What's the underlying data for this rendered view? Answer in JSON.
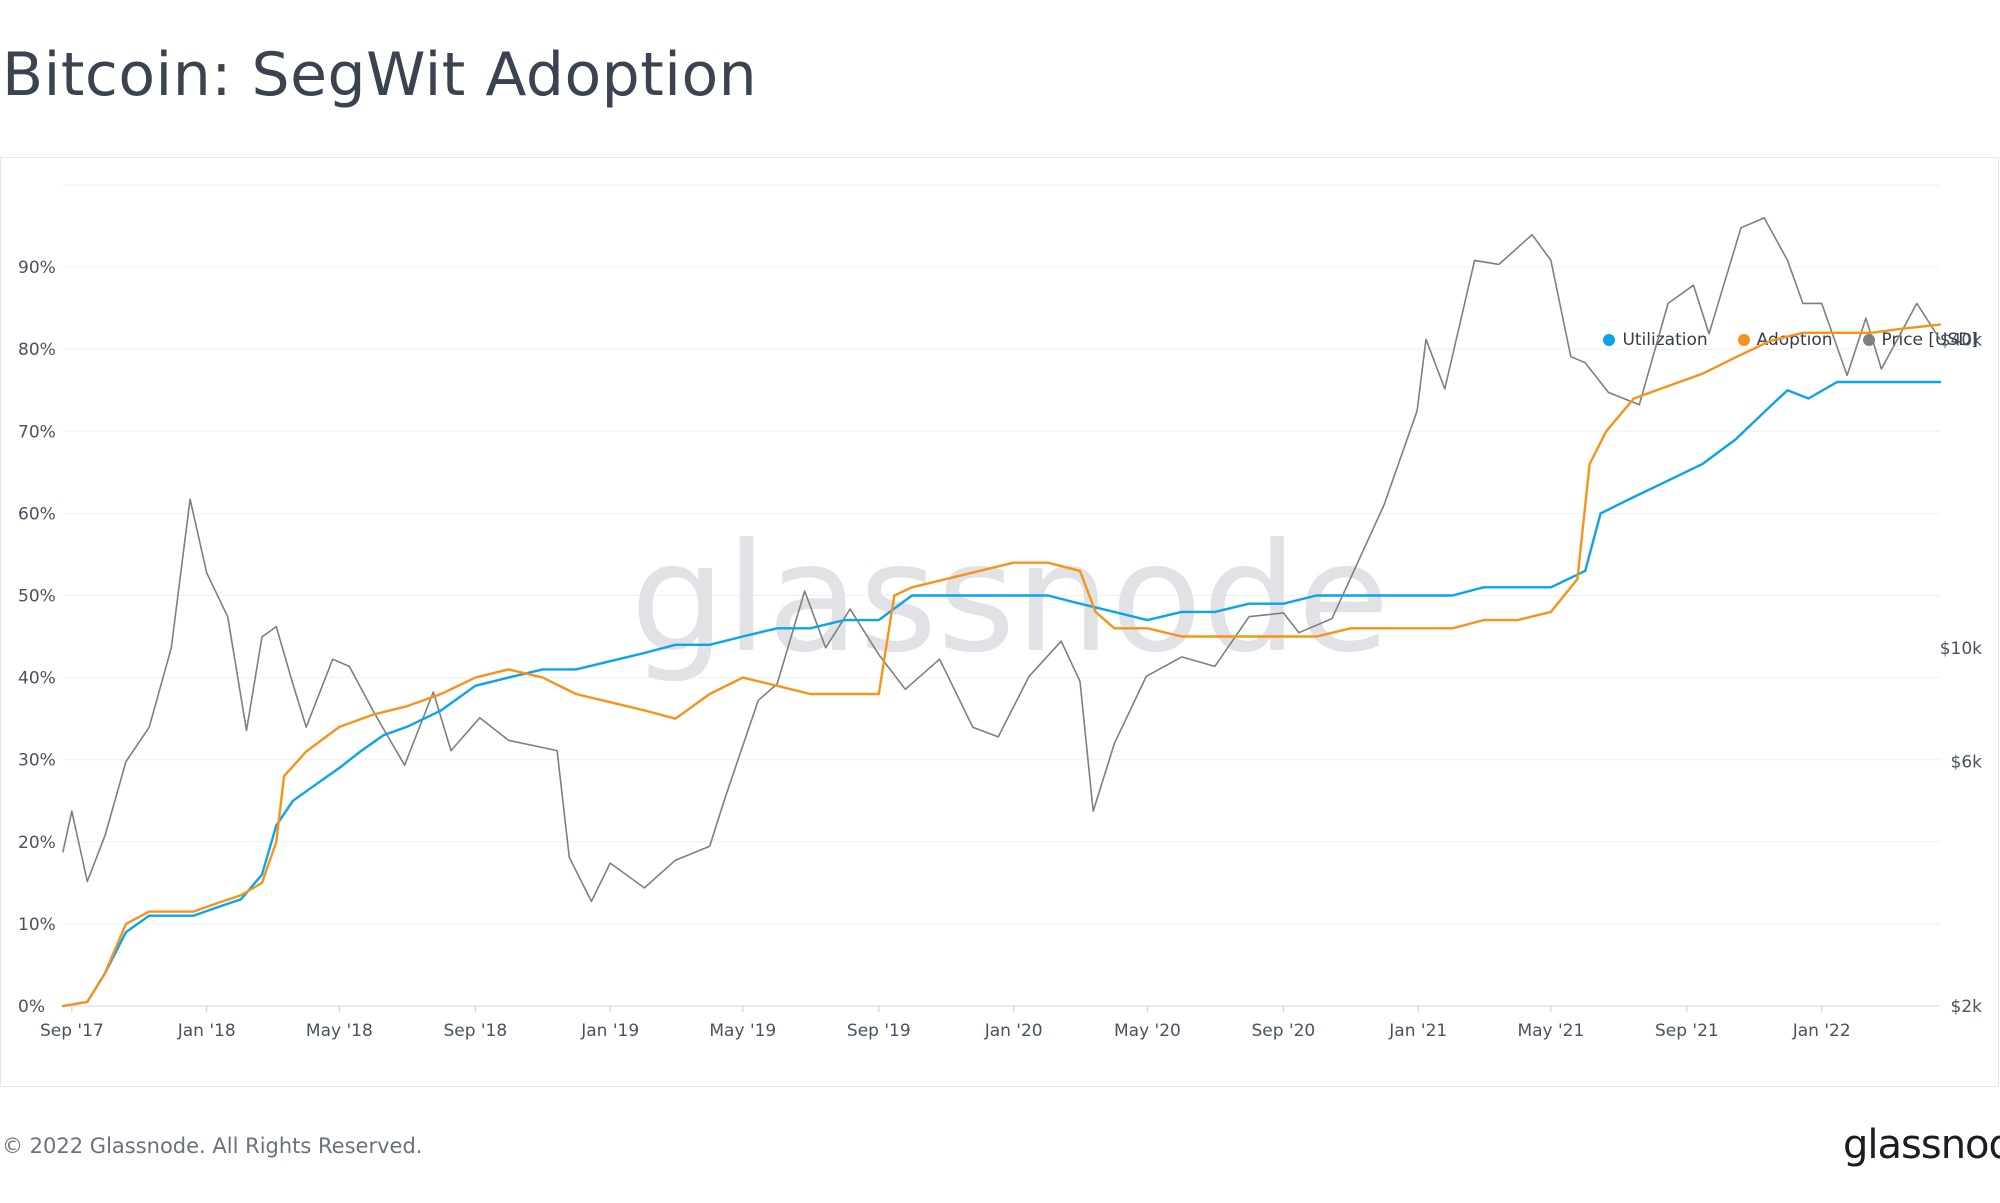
{
  "page": {
    "title": "Bitcoin: SegWit Adoption",
    "copyright": "© 2022 Glassnode. All Rights Reserved.",
    "logo_text": "glassnode",
    "watermark": "glassnode"
  },
  "chart_data": {
    "type": "line",
    "title": "Bitcoin: SegWit Adoption",
    "xlabel": "",
    "ylabel": "",
    "x_ticks": [
      "Sep '17",
      "Jan '18",
      "May '18",
      "Sep '18",
      "Jan '19",
      "May '19",
      "Sep '19",
      "Jan '20",
      "May '20",
      "Sep '20",
      "Jan '21",
      "May '21",
      "Sep '21",
      "Jan '22"
    ],
    "y_ticks_left": [
      "0%",
      "10%",
      "20%",
      "30%",
      "40%",
      "50%",
      "60%",
      "70%",
      "80%",
      "90%"
    ],
    "y_ticks_right": [
      "$2k",
      "$6k",
      "$10k",
      "$40k"
    ],
    "ylim_left": [
      0,
      100
    ],
    "ylim_right_log_usd": [
      2000,
      80000
    ],
    "x_range": [
      "2017-08-24",
      "2022-04-18"
    ],
    "grid": true,
    "legend_position": "top-right",
    "colors": {
      "utilization": "#0ba4ec",
      "adoption": "#f7931a",
      "price": "#7f7f7f"
    },
    "series": [
      {
        "name": "Utilization",
        "axis": "left",
        "points": [
          [
            "2017-08-24",
            0
          ],
          [
            "2017-09-15",
            0.5
          ],
          [
            "2017-10-01",
            4
          ],
          [
            "2017-10-20",
            9
          ],
          [
            "2017-11-10",
            11
          ],
          [
            "2017-12-01",
            11
          ],
          [
            "2017-12-20",
            11
          ],
          [
            "2018-01-10",
            12
          ],
          [
            "2018-02-01",
            13
          ],
          [
            "2018-02-20",
            16
          ],
          [
            "2018-03-05",
            22
          ],
          [
            "2018-03-20",
            25
          ],
          [
            "2018-04-10",
            27
          ],
          [
            "2018-05-01",
            29
          ],
          [
            "2018-05-20",
            31
          ],
          [
            "2018-06-10",
            33
          ],
          [
            "2018-07-01",
            34
          ],
          [
            "2018-08-01",
            36
          ],
          [
            "2018-09-01",
            39
          ],
          [
            "2018-10-01",
            40
          ],
          [
            "2018-11-01",
            41
          ],
          [
            "2018-12-01",
            41
          ],
          [
            "2019-01-01",
            42
          ],
          [
            "2019-02-01",
            43
          ],
          [
            "2019-03-01",
            44
          ],
          [
            "2019-04-01",
            44
          ],
          [
            "2019-05-01",
            45
          ],
          [
            "2019-06-01",
            46
          ],
          [
            "2019-07-01",
            46
          ],
          [
            "2019-08-01",
            47
          ],
          [
            "2019-09-01",
            47
          ],
          [
            "2019-10-01",
            50
          ],
          [
            "2019-11-01",
            50
          ],
          [
            "2019-12-01",
            50
          ],
          [
            "2020-01-01",
            50
          ],
          [
            "2020-02-01",
            50
          ],
          [
            "2020-03-01",
            49
          ],
          [
            "2020-04-01",
            48
          ],
          [
            "2020-05-01",
            47
          ],
          [
            "2020-06-01",
            48
          ],
          [
            "2020-07-01",
            48
          ],
          [
            "2020-08-01",
            49
          ],
          [
            "2020-09-01",
            49
          ],
          [
            "2020-10-01",
            50
          ],
          [
            "2020-11-01",
            50
          ],
          [
            "2020-12-01",
            50
          ],
          [
            "2021-01-01",
            50
          ],
          [
            "2021-02-01",
            50
          ],
          [
            "2021-03-01",
            51
          ],
          [
            "2021-04-01",
            51
          ],
          [
            "2021-05-01",
            51
          ],
          [
            "2021-06-01",
            53
          ],
          [
            "2021-06-15",
            60
          ],
          [
            "2021-07-15",
            62
          ],
          [
            "2021-08-15",
            64
          ],
          [
            "2021-09-15",
            66
          ],
          [
            "2021-10-15",
            69
          ],
          [
            "2021-11-15",
            73
          ],
          [
            "2021-12-01",
            75
          ],
          [
            "2021-12-20",
            74
          ],
          [
            "2022-01-15",
            76
          ],
          [
            "2022-02-15",
            76
          ],
          [
            "2022-03-15",
            76
          ],
          [
            "2022-04-18",
            76
          ]
        ]
      },
      {
        "name": "Adoption",
        "axis": "left",
        "points": [
          [
            "2017-08-24",
            0
          ],
          [
            "2017-09-15",
            0.5
          ],
          [
            "2017-10-01",
            4
          ],
          [
            "2017-10-20",
            10
          ],
          [
            "2017-11-10",
            11.5
          ],
          [
            "2017-12-01",
            11.5
          ],
          [
            "2017-12-20",
            11.5
          ],
          [
            "2018-01-10",
            12.5
          ],
          [
            "2018-02-01",
            13.5
          ],
          [
            "2018-02-20",
            15
          ],
          [
            "2018-03-05",
            20
          ],
          [
            "2018-03-12",
            28
          ],
          [
            "2018-04-01",
            31
          ],
          [
            "2018-05-01",
            34
          ],
          [
            "2018-06-01",
            35.5
          ],
          [
            "2018-07-01",
            36.5
          ],
          [
            "2018-08-01",
            38
          ],
          [
            "2018-09-01",
            40
          ],
          [
            "2018-10-01",
            41
          ],
          [
            "2018-11-01",
            40
          ],
          [
            "2018-12-01",
            38
          ],
          [
            "2019-01-01",
            37
          ],
          [
            "2019-02-01",
            36
          ],
          [
            "2019-03-01",
            35
          ],
          [
            "2019-04-01",
            38
          ],
          [
            "2019-05-01",
            40
          ],
          [
            "2019-06-01",
            39
          ],
          [
            "2019-07-01",
            38
          ],
          [
            "2019-08-01",
            38
          ],
          [
            "2019-09-01",
            38
          ],
          [
            "2019-09-15",
            50
          ],
          [
            "2019-10-01",
            51
          ],
          [
            "2019-11-01",
            52
          ],
          [
            "2019-12-01",
            53
          ],
          [
            "2020-01-01",
            54
          ],
          [
            "2020-02-01",
            54
          ],
          [
            "2020-03-01",
            53
          ],
          [
            "2020-03-15",
            48
          ],
          [
            "2020-04-01",
            46
          ],
          [
            "2020-05-01",
            46
          ],
          [
            "2020-06-01",
            45
          ],
          [
            "2020-07-01",
            45
          ],
          [
            "2020-08-01",
            45
          ],
          [
            "2020-09-01",
            45
          ],
          [
            "2020-10-01",
            45
          ],
          [
            "2020-11-01",
            46
          ],
          [
            "2020-12-01",
            46
          ],
          [
            "2021-01-01",
            46
          ],
          [
            "2021-02-01",
            46
          ],
          [
            "2021-03-01",
            47
          ],
          [
            "2021-04-01",
            47
          ],
          [
            "2021-05-01",
            48
          ],
          [
            "2021-05-25",
            52
          ],
          [
            "2021-06-05",
            66
          ],
          [
            "2021-06-20",
            70
          ],
          [
            "2021-07-15",
            74
          ],
          [
            "2021-08-15",
            75.5
          ],
          [
            "2021-09-15",
            77
          ],
          [
            "2021-10-15",
            79
          ],
          [
            "2021-11-15",
            81
          ],
          [
            "2021-12-15",
            82
          ],
          [
            "2022-01-15",
            82
          ],
          [
            "2022-02-15",
            82
          ],
          [
            "2022-03-15",
            82.5
          ],
          [
            "2022-04-18",
            83
          ]
        ]
      },
      {
        "name": "Price [USD]",
        "axis": "right",
        "points": [
          [
            "2017-08-24",
            4000
          ],
          [
            "2017-09-01",
            4800
          ],
          [
            "2017-09-15",
            3500
          ],
          [
            "2017-10-01",
            4300
          ],
          [
            "2017-10-20",
            6000
          ],
          [
            "2017-11-10",
            7000
          ],
          [
            "2017-11-30",
            10000
          ],
          [
            "2017-12-17",
            19500
          ],
          [
            "2018-01-01",
            14000
          ],
          [
            "2018-01-20",
            11500
          ],
          [
            "2018-02-06",
            6900
          ],
          [
            "2018-02-20",
            10500
          ],
          [
            "2018-03-05",
            11000
          ],
          [
            "2018-03-20",
            8500
          ],
          [
            "2018-04-01",
            7000
          ],
          [
            "2018-04-25",
            9500
          ],
          [
            "2018-05-10",
            9200
          ],
          [
            "2018-06-01",
            7500
          ],
          [
            "2018-06-29",
            5900
          ],
          [
            "2018-07-25",
            8200
          ],
          [
            "2018-08-10",
            6300
          ],
          [
            "2018-09-05",
            7300
          ],
          [
            "2018-10-01",
            6600
          ],
          [
            "2018-11-14",
            6300
          ],
          [
            "2018-11-25",
            3900
          ],
          [
            "2018-12-15",
            3200
          ],
          [
            "2019-01-01",
            3800
          ],
          [
            "2019-02-01",
            3400
          ],
          [
            "2019-03-01",
            3850
          ],
          [
            "2019-04-01",
            4100
          ],
          [
            "2019-04-15",
            5100
          ],
          [
            "2019-05-15",
            7900
          ],
          [
            "2019-06-01",
            8500
          ],
          [
            "2019-06-26",
            12900
          ],
          [
            "2019-07-15",
            10000
          ],
          [
            "2019-08-06",
            11900
          ],
          [
            "2019-09-01",
            9700
          ],
          [
            "2019-09-25",
            8300
          ],
          [
            "2019-10-26",
            9500
          ],
          [
            "2019-11-25",
            7000
          ],
          [
            "2019-12-18",
            6700
          ],
          [
            "2020-01-15",
            8800
          ],
          [
            "2020-02-13",
            10300
          ],
          [
            "2020-03-01",
            8600
          ],
          [
            "2020-03-13",
            4800
          ],
          [
            "2020-04-01",
            6500
          ],
          [
            "2020-04-30",
            8800
          ],
          [
            "2020-06-01",
            9600
          ],
          [
            "2020-07-01",
            9200
          ],
          [
            "2020-08-01",
            11500
          ],
          [
            "2020-09-01",
            11700
          ],
          [
            "2020-09-15",
            10700
          ],
          [
            "2020-10-15",
            11400
          ],
          [
            "2020-11-01",
            13700
          ],
          [
            "2020-12-01",
            19000
          ],
          [
            "2020-12-31",
            29000
          ],
          [
            "2021-01-08",
            40000
          ],
          [
            "2021-01-25",
            32000
          ],
          [
            "2021-02-21",
            57000
          ],
          [
            "2021-03-15",
            56000
          ],
          [
            "2021-04-14",
            64000
          ],
          [
            "2021-05-01",
            57000
          ],
          [
            "2021-05-19",
            37000
          ],
          [
            "2021-06-01",
            36000
          ],
          [
            "2021-06-22",
            31500
          ],
          [
            "2021-07-20",
            29800
          ],
          [
            "2021-08-15",
            47000
          ],
          [
            "2021-09-07",
            51000
          ],
          [
            "2021-09-21",
            41000
          ],
          [
            "2021-10-20",
            66000
          ],
          [
            "2021-11-10",
            69000
          ],
          [
            "2021-12-01",
            57000
          ],
          [
            "2021-12-15",
            47000
          ],
          [
            "2022-01-01",
            47000
          ],
          [
            "2022-01-24",
            34000
          ],
          [
            "2022-02-10",
            44000
          ],
          [
            "2022-02-24",
            35000
          ],
          [
            "2022-03-28",
            47000
          ],
          [
            "2022-04-18",
            40000
          ]
        ]
      }
    ]
  }
}
